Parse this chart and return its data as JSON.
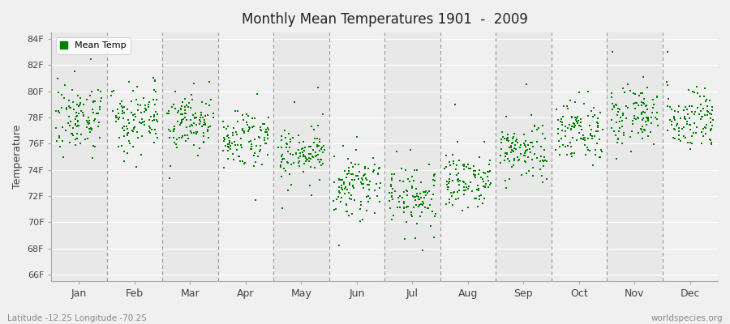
{
  "title": "Monthly Mean Temperatures 1901  -  2009",
  "ylabel": "Temperature",
  "xlabel_labels": [
    "Jan",
    "Feb",
    "Mar",
    "Apr",
    "May",
    "Jun",
    "Jul",
    "Aug",
    "Sep",
    "Oct",
    "Nov",
    "Dec"
  ],
  "ytick_labels": [
    "66F",
    "68F",
    "70F",
    "72F",
    "74F",
    "76F",
    "78F",
    "80F",
    "82F",
    "84F"
  ],
  "ytick_values": [
    66,
    68,
    70,
    72,
    74,
    76,
    78,
    80,
    82,
    84
  ],
  "ylim": [
    65.5,
    84.5
  ],
  "dot_color": "#008000",
  "dot_size": 3,
  "background_color": "#f0f0f0",
  "band_colors": [
    "#e8e8e8",
    "#f0f0f0"
  ],
  "grid_color": "#ffffff",
  "dashed_line_color": "#999999",
  "footer_left": "Latitude -12.25 Longitude -70.25",
  "footer_right": "worldspecies.org",
  "legend_label": "Mean Temp",
  "n_years": 109,
  "month_mean_temps": [
    78.0,
    78.1,
    77.6,
    76.3,
    75.2,
    72.8,
    71.8,
    73.2,
    75.5,
    77.0,
    78.2,
    78.0
  ],
  "month_std": [
    1.3,
    1.2,
    1.1,
    1.0,
    1.0,
    1.1,
    1.3,
    1.1,
    1.0,
    1.1,
    1.1,
    1.1
  ],
  "month_outlier_range": [
    2.5,
    5.0
  ]
}
